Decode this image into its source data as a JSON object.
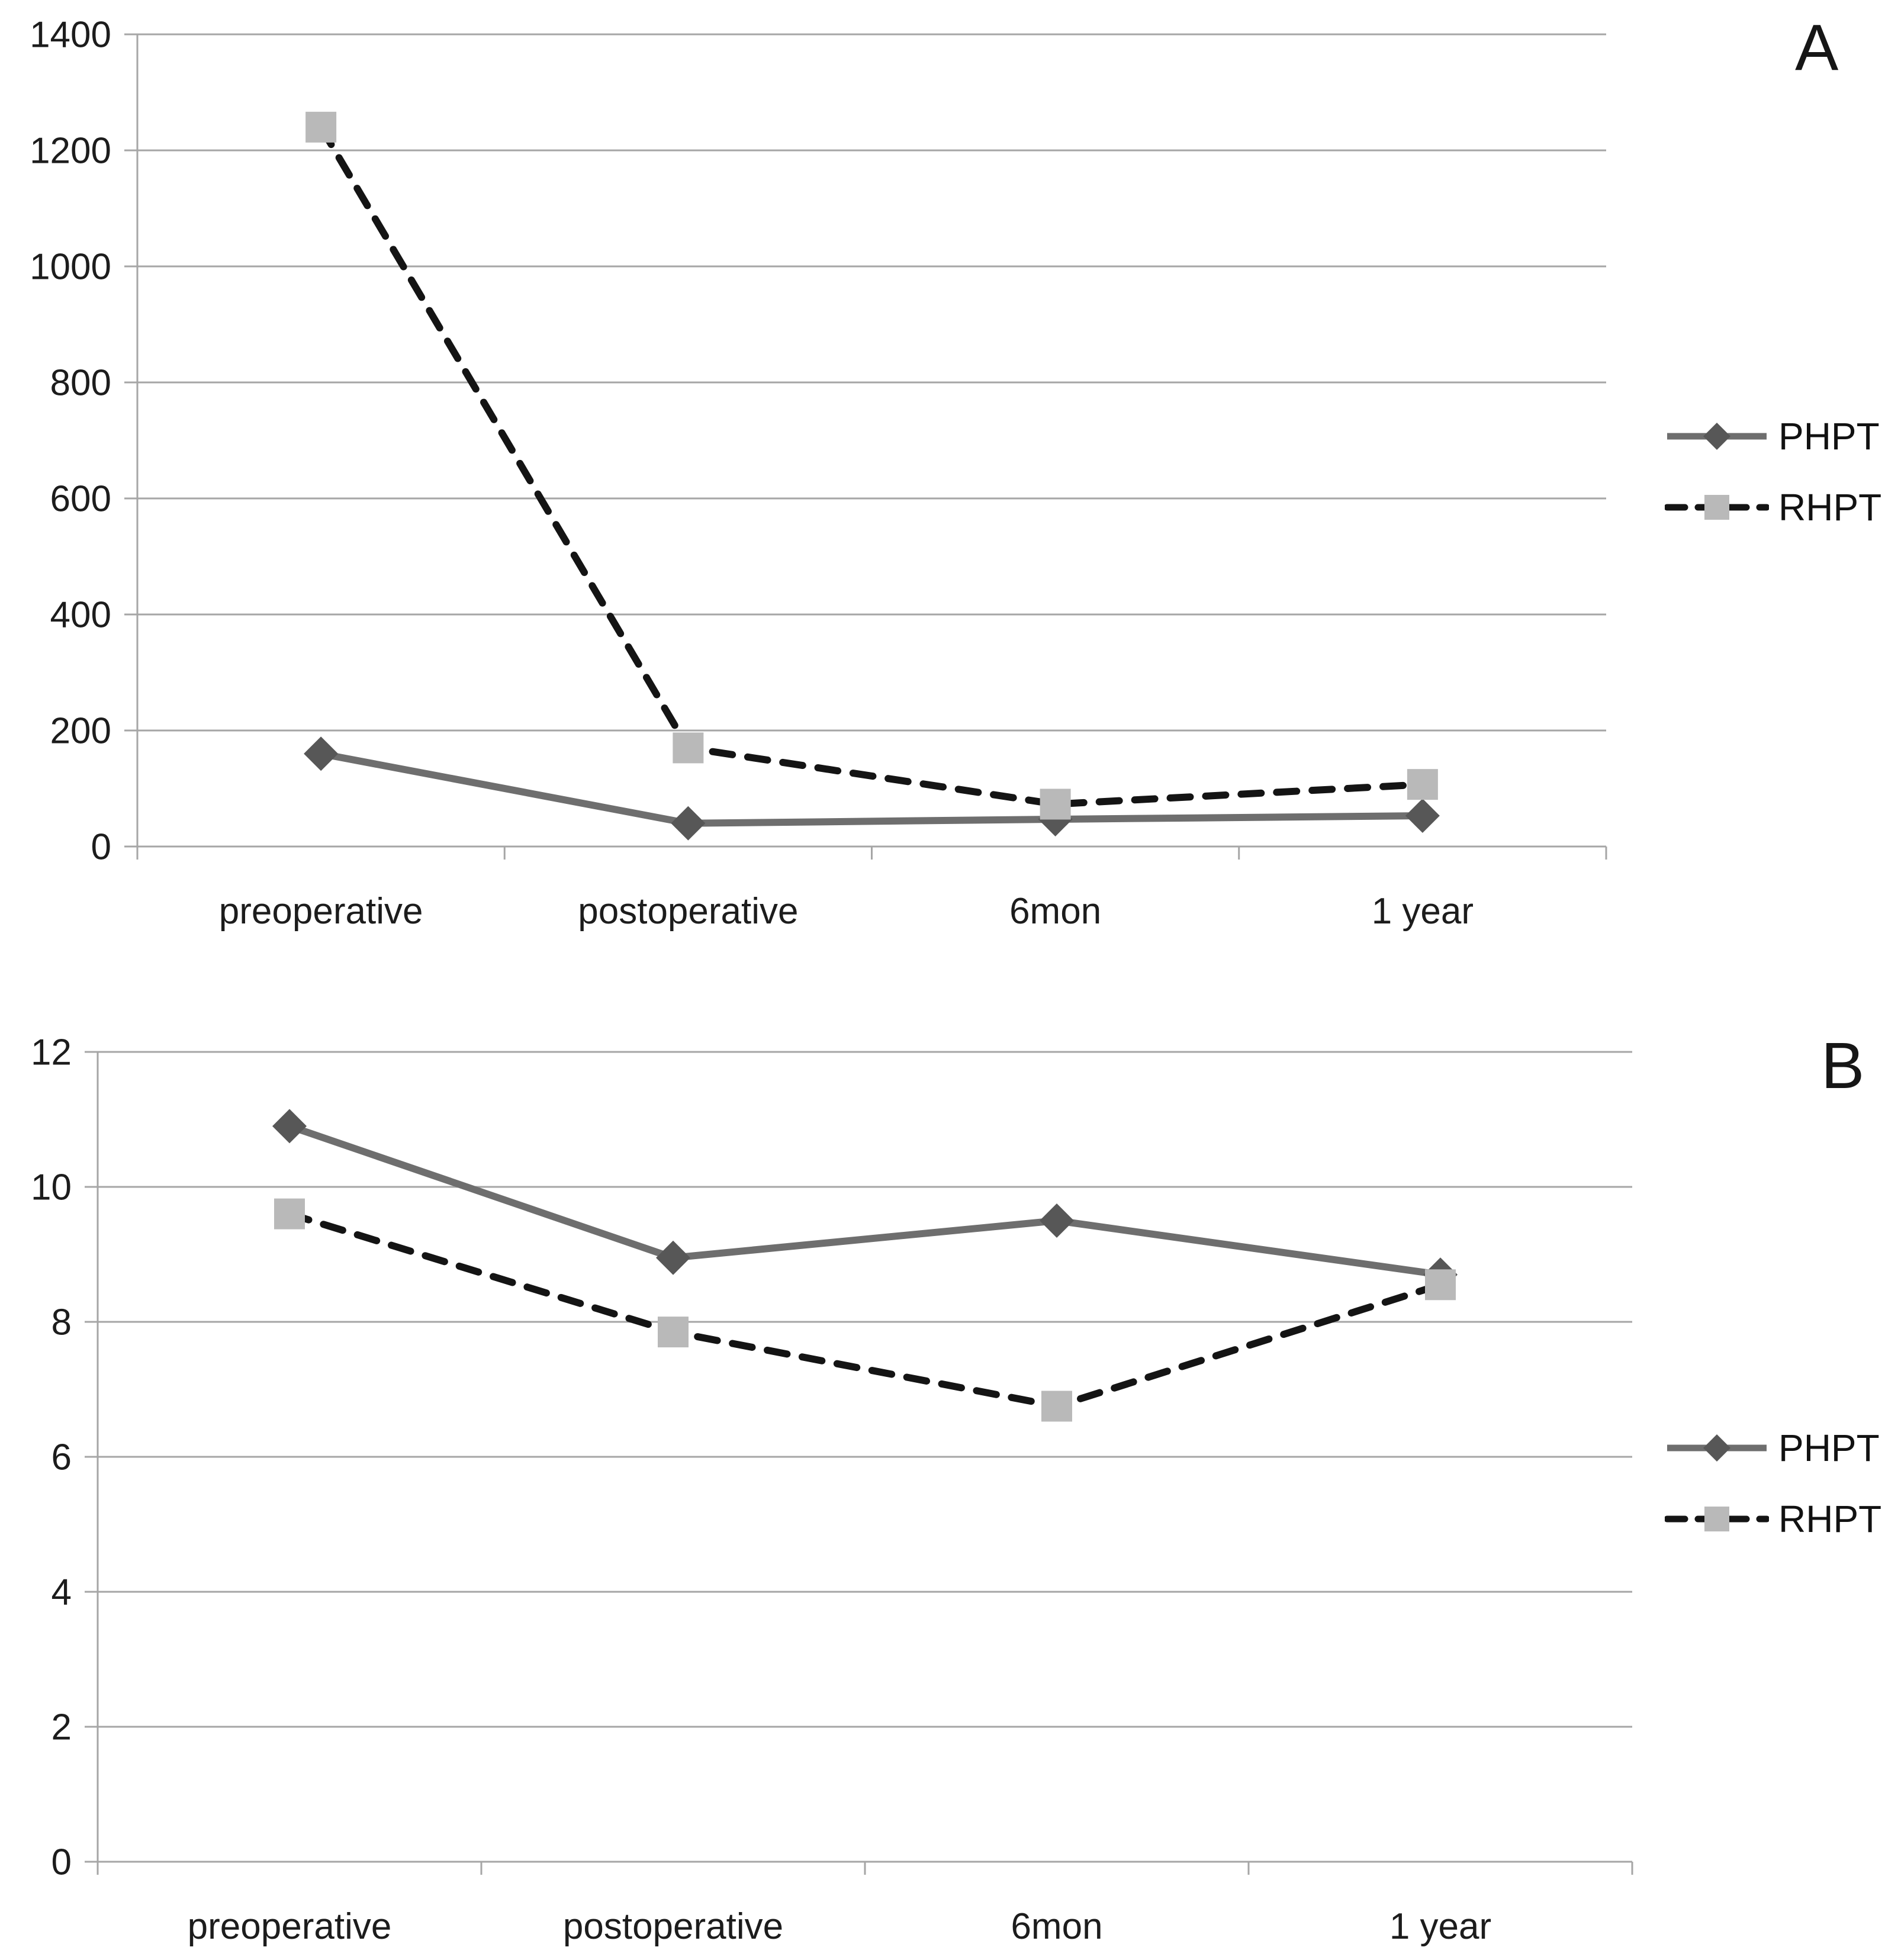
{
  "page": {
    "background": "#ffffff"
  },
  "panels": [
    {
      "letter": "A"
    },
    {
      "letter": "B"
    }
  ],
  "chart_data": [
    {
      "type": "line",
      "panel": "A",
      "title": "",
      "categories": [
        "preoperative",
        "postoperative",
        "6mon",
        "1 year"
      ],
      "series": [
        {
          "name": "PHPT",
          "values": [
            160,
            40,
            47,
            53
          ],
          "line_style": "solid",
          "marker": "diamond",
          "line_color": "#6e6e6e",
          "marker_color": "#575757"
        },
        {
          "name": "RHPT",
          "values": [
            1240,
            170,
            73,
            107
          ],
          "line_style": "dashed",
          "marker": "square",
          "line_color": "#141414",
          "marker_color": "#b9b9b9"
        }
      ],
      "ylim": [
        0,
        1400
      ],
      "yticks": [
        0,
        200,
        400,
        600,
        800,
        1000,
        1200,
        1400
      ],
      "grid": true,
      "grid_color": "#a6a6a6",
      "legend_position": "right"
    },
    {
      "type": "line",
      "panel": "B",
      "title": "",
      "categories": [
        "preoperative",
        "postoperative",
        "6mon",
        "1 year"
      ],
      "series": [
        {
          "name": "PHPT",
          "values": [
            10.9,
            8.95,
            9.5,
            8.7
          ],
          "line_style": "solid",
          "marker": "diamond",
          "line_color": "#6e6e6e",
          "marker_color": "#575757"
        },
        {
          "name": "RHPT",
          "values": [
            9.6,
            7.85,
            6.75,
            8.55
          ],
          "line_style": "dashed",
          "marker": "square",
          "line_color": "#141414",
          "marker_color": "#b9b9b9"
        }
      ],
      "ylim": [
        0,
        12
      ],
      "yticks": [
        0,
        2,
        4,
        6,
        8,
        10,
        12
      ],
      "grid": true,
      "grid_color": "#a6a6a6",
      "legend_position": "right"
    }
  ]
}
